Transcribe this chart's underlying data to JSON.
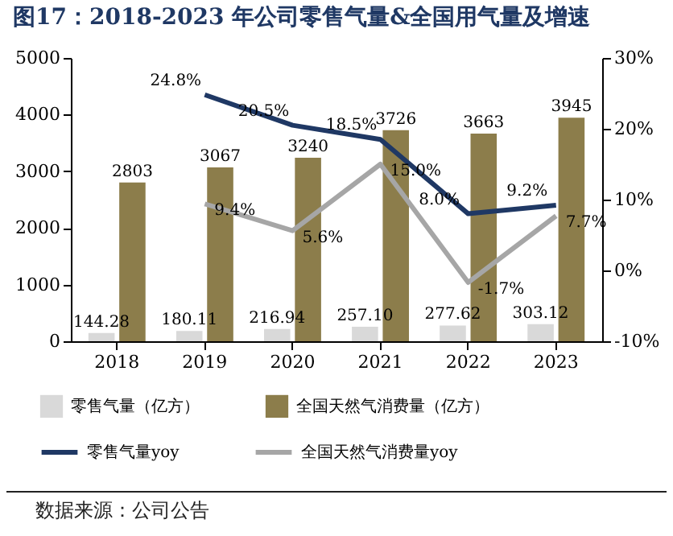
{
  "chart_data": {
    "type": "bar",
    "title": "图17：2018-2023 年公司零售气量&全国用气量及增速",
    "annotations": [
      "数据来源：公司公告"
    ],
    "categories": [
      "2018",
      "2019",
      "2020",
      "2021",
      "2022",
      "2023"
    ],
    "series": [
      {
        "name": "零售气量（亿方）",
        "color": "#d9d9d9",
        "values": [
          144.28,
          180.11,
          216.94,
          257.1,
          277.62,
          303.12
        ],
        "value_labels": [
          "144.28",
          "180.11",
          "216.94",
          "257.10",
          "277.62",
          "303.12"
        ]
      },
      {
        "name": "全国天然气消费量（亿方）",
        "color": "#8c7d4b",
        "values": [
          2803,
          3067,
          3240,
          3726,
          3663,
          3945
        ],
        "value_labels": [
          "2803",
          "3067",
          "3240",
          "3726",
          "3663",
          "3945"
        ]
      },
      {
        "name": "零售气量yoy",
        "type": "line",
        "axis": "y2",
        "color": "#1f3864",
        "values": [
          null,
          24.8,
          20.5,
          18.5,
          8.0,
          9.2
        ],
        "value_labels": [
          null,
          "24.8%",
          "20.5%",
          "18.5%",
          "8.0%",
          "9.2%"
        ]
      },
      {
        "name": "全国天然气消费量yoy",
        "type": "line",
        "axis": "y2",
        "color": "#a6a6a6",
        "values": [
          null,
          9.4,
          5.6,
          15.0,
          -1.7,
          7.7
        ],
        "value_labels": [
          null,
          "9.4%",
          "5.6%",
          "15.0%",
          "-1.7%",
          "7.7%"
        ]
      }
    ],
    "ylim": [
      0,
      5000
    ],
    "yticks": [
      0,
      1000,
      2000,
      3000,
      4000,
      5000
    ],
    "y2lim": [
      -10,
      30
    ],
    "y2ticks": [
      {
        "value": -10,
        "label": "-10%"
      },
      {
        "value": 0,
        "label": "0%"
      },
      {
        "value": 10,
        "label": "10%"
      },
      {
        "value": 20,
        "label": "20%"
      },
      {
        "value": 30,
        "label": "30%"
      }
    ],
    "grid": false,
    "legend": "bottom",
    "marker": "none",
    "line_style": "solid"
  }
}
